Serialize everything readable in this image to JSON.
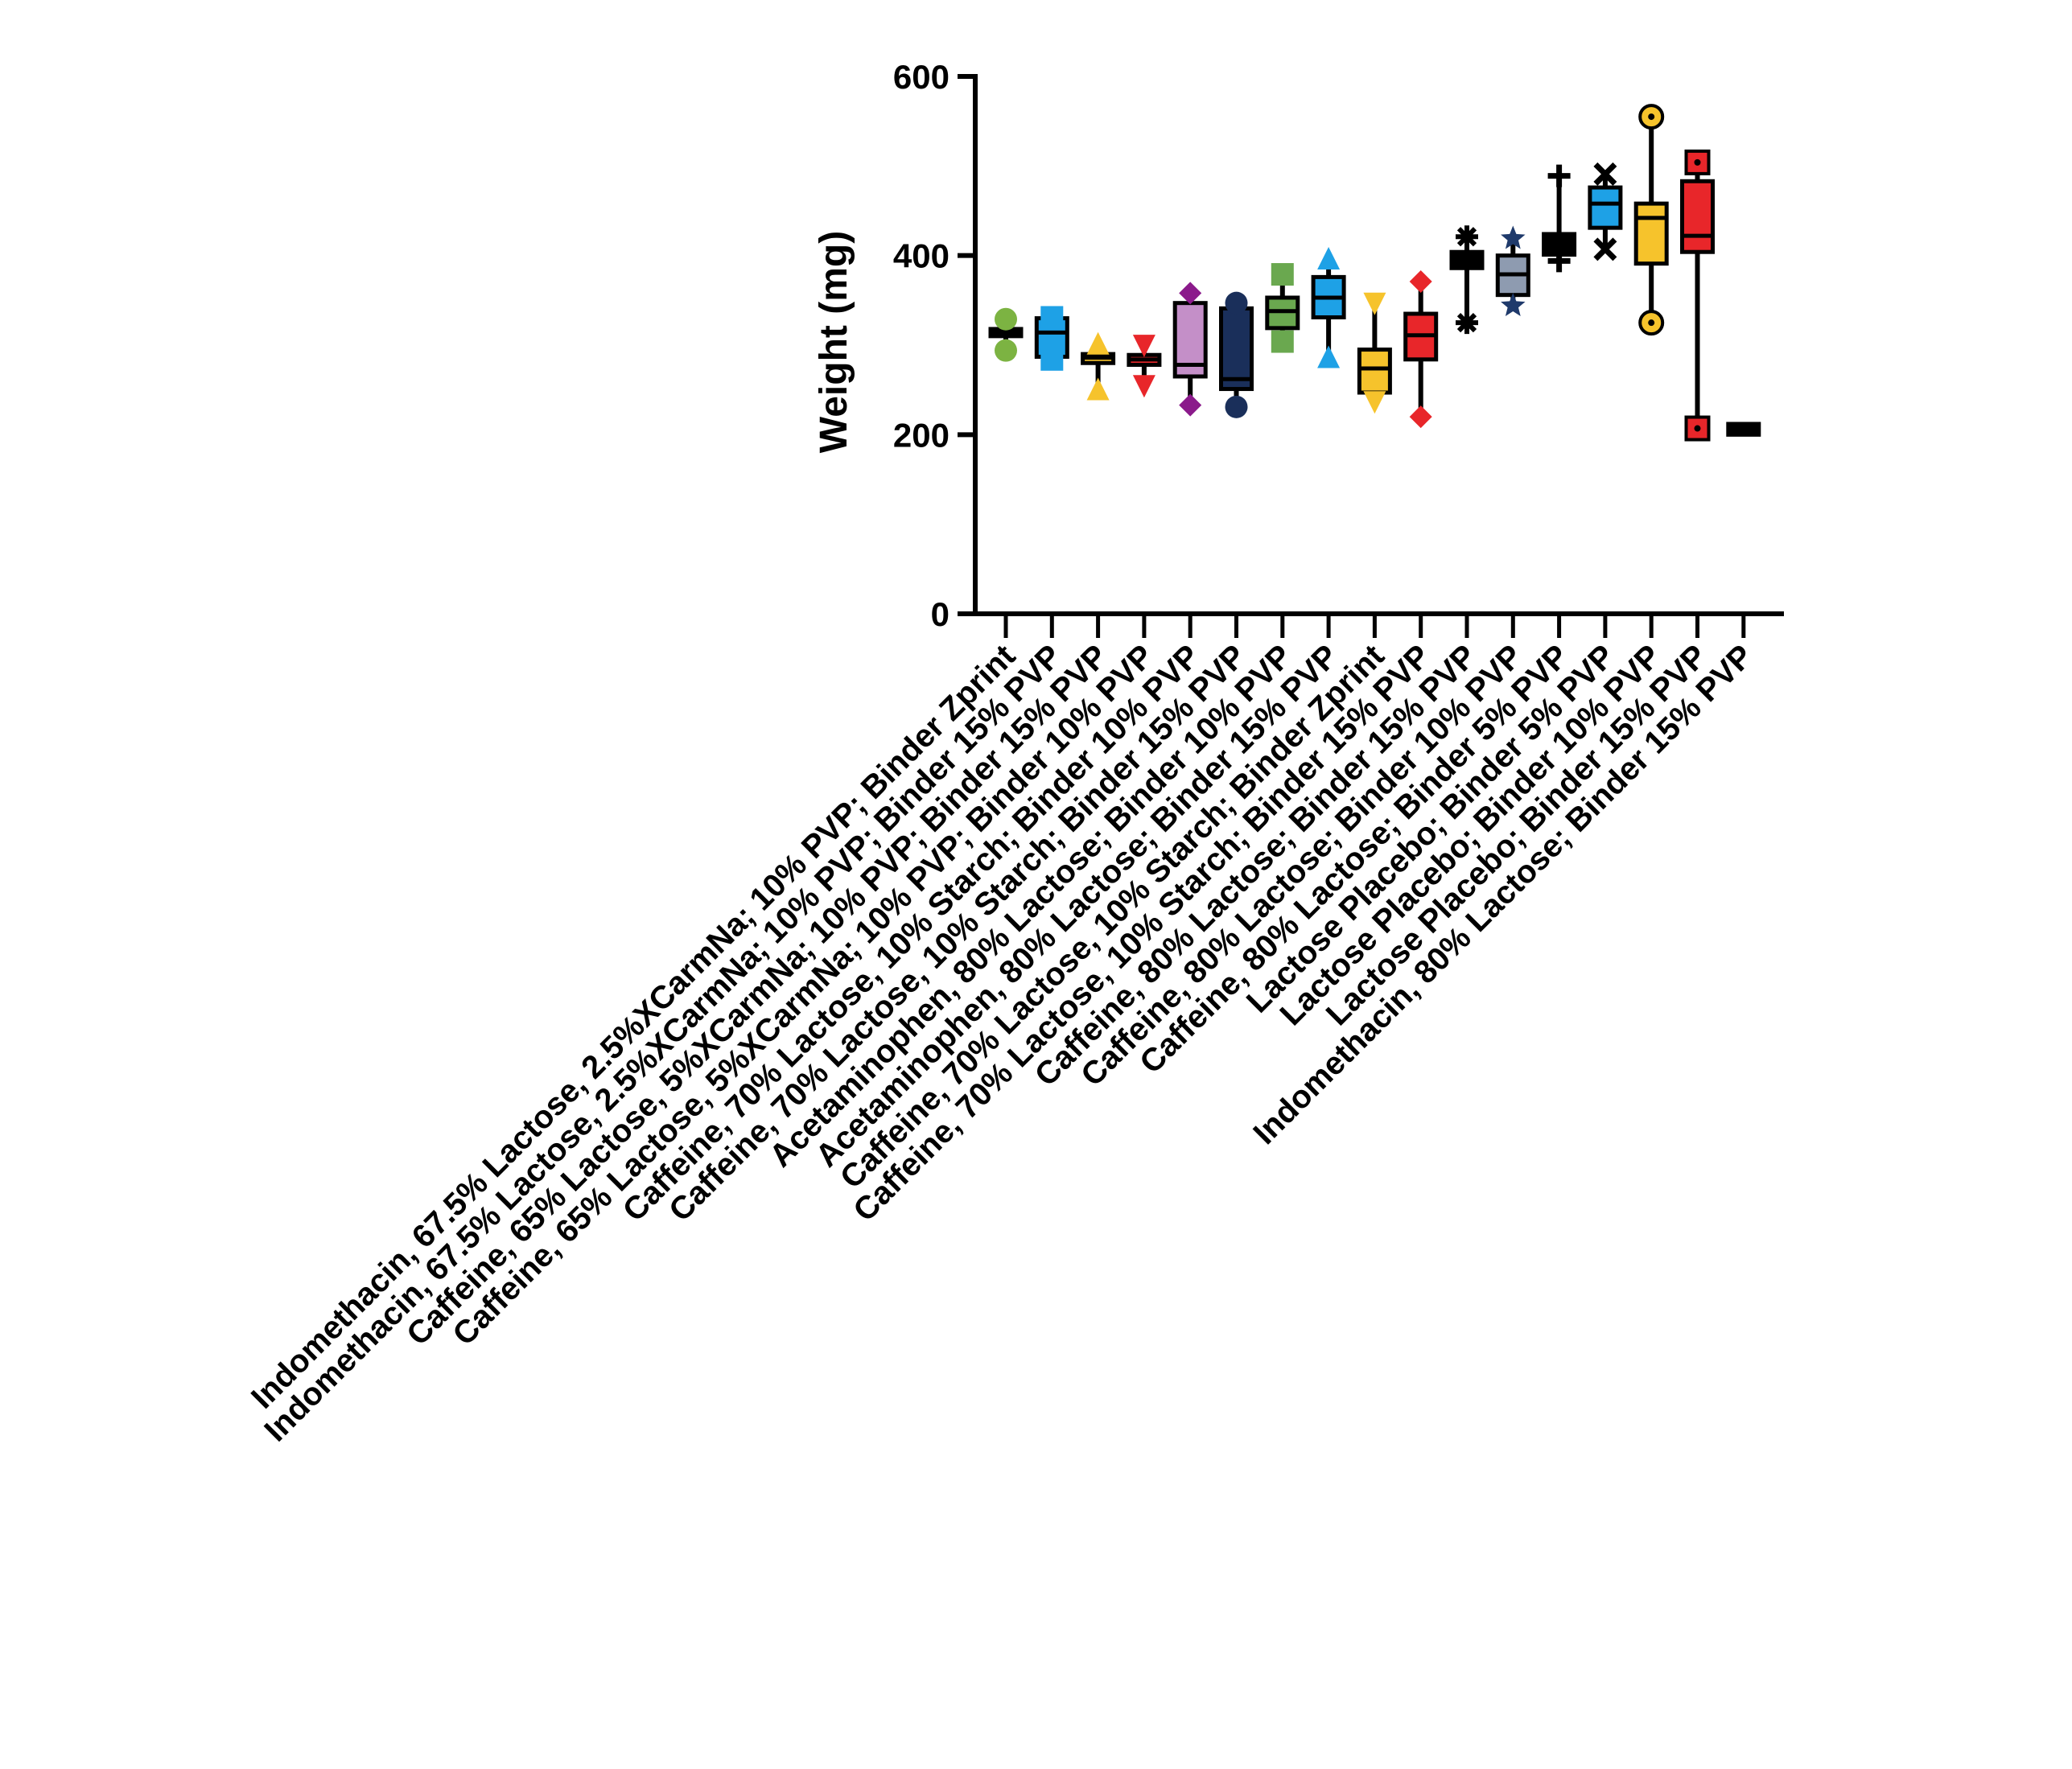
{
  "chart_data": {
    "type": "box",
    "ylabel": "Weight (mg)",
    "ylim": [
      0,
      600
    ],
    "yticks": [
      0,
      200,
      400,
      600
    ],
    "categories": [
      "Indomethacin, 67.5% Lactose, 2.5%XCarmNa; 10% PVP; Binder Zprint",
      "Indomethacin, 67.5% Lactose, 2.5%XCarmNa; 10% PVP; Binder 15% PVP",
      "Caffeine, 65% Lactose, 5%XCarmNa; 10% PVP; Binder 15% PVP",
      "Caffeine, 65% Lactose, 5%XCarmNa; 10% PVP; Binder 10% PVP",
      "Caffeine, 70% Lactose, 10% Starch; Binder 10% PVP",
      "Caffeine, 70% Lactose, 10% Starch; Binder 15% PVP",
      "Acetaminophen, 80% Lactose; Binder 10% PVP",
      "Acetaminophen, 80% Lactose; Binder 15% PVP",
      "Caffeine, 70% Lactose, 10% Starch; Binder Zprint",
      "Caffeine, 70% Lactose, 10% Starch; Binder 15% PVP",
      "Caffeine, 80% Lactose; Binder 15% PVP",
      "Caffeine, 80% Lactose; Binder 10% PVP",
      "Caffeine, 80% Lactose; Binder 5% PVP",
      "Lactose Placebo; Binder 5% PVP",
      "Lactose Placebo; Binder 10% PVP",
      "Lactose Placebo; Binder 15% PVP",
      "Indomethacin, 80% Lactose; Binder 15% PVP"
    ],
    "boxes": [
      {
        "min": 294,
        "q1": 310,
        "median": 314,
        "q3": 318,
        "max": 329,
        "color": "#7cb342",
        "marker": "circle",
        "marker_color": "#7cb342"
      },
      {
        "min": 284,
        "q1": 287,
        "median": 314,
        "q3": 330,
        "max": 331,
        "color": "#1ea1e6",
        "marker": "square",
        "marker_color": "#1ea1e6"
      },
      {
        "min": 251,
        "q1": 280,
        "median": 286,
        "q3": 290,
        "max": 302,
        "color": "#f6c32c",
        "marker": "triangle-up",
        "marker_color": "#f6c32c"
      },
      {
        "min": 254,
        "q1": 278,
        "median": 284,
        "q3": 289,
        "max": 299,
        "color": "#e8262a",
        "marker": "triangle-down",
        "marker_color": "#e8262a"
      },
      {
        "min": 233,
        "q1": 265,
        "median": 278,
        "q3": 347,
        "max": 358,
        "color": "#c48fc8",
        "marker": "diamond",
        "marker_color": "#8b1a8b"
      },
      {
        "min": 231,
        "q1": 251,
        "median": 262,
        "q3": 341,
        "max": 347,
        "color": "#1a2f5a",
        "marker": "circle",
        "marker_color": "#1a2f5a"
      },
      {
        "min": 304,
        "q1": 319,
        "median": 338,
        "q3": 353,
        "max": 379,
        "color": "#6aa84f",
        "marker": "square",
        "marker_color": "#6aa84f"
      },
      {
        "min": 287,
        "q1": 331,
        "median": 353,
        "q3": 376,
        "max": 397,
        "color": "#1ea1e6",
        "marker": "triangle-up",
        "marker_color": "#1ea1e6"
      },
      {
        "min": 236,
        "q1": 247,
        "median": 274,
        "q3": 295,
        "max": 346,
        "color": "#f6c32c",
        "marker": "triangle-down",
        "marker_color": "#f6c32c"
      },
      {
        "min": 220,
        "q1": 284,
        "median": 311,
        "q3": 335,
        "max": 371,
        "color": "#e8262a",
        "marker": "diamond",
        "marker_color": "#e8262a"
      },
      {
        "min": 325,
        "q1": 386,
        "median": 394,
        "q3": 404,
        "max": 421,
        "color": "#000000",
        "marker": "asterisk",
        "marker_color": "#000000"
      },
      {
        "min": 344,
        "q1": 356,
        "median": 379,
        "q3": 400,
        "max": 419,
        "color": "#8e9bb0",
        "marker": "star",
        "marker_color": "#1f3a6b"
      },
      {
        "min": 394,
        "q1": 401,
        "median": 416,
        "q3": 424,
        "max": 489,
        "color": "#000000",
        "marker": "plus",
        "marker_color": "#000000"
      },
      {
        "min": 407,
        "q1": 431,
        "median": 458,
        "q3": 476,
        "max": 491,
        "color": "#1ea1e6",
        "marker": "x",
        "marker_color": "#000000"
      },
      {
        "min": 325,
        "q1": 391,
        "median": 442,
        "q3": 458,
        "max": 555,
        "color": "#f6c32c",
        "marker": "circle-ring",
        "marker_color": "#f6c32c"
      },
      {
        "min": 207,
        "q1": 404,
        "median": 422,
        "q3": 483,
        "max": 504,
        "color": "#e8262a",
        "marker": "square-ring",
        "marker_color": "#e8262a"
      },
      {
        "min": 199,
        "q1": 200,
        "median": 207,
        "q3": 212,
        "max": 213,
        "color": "#000000",
        "marker": "none",
        "marker_color": "#000000"
      }
    ]
  }
}
